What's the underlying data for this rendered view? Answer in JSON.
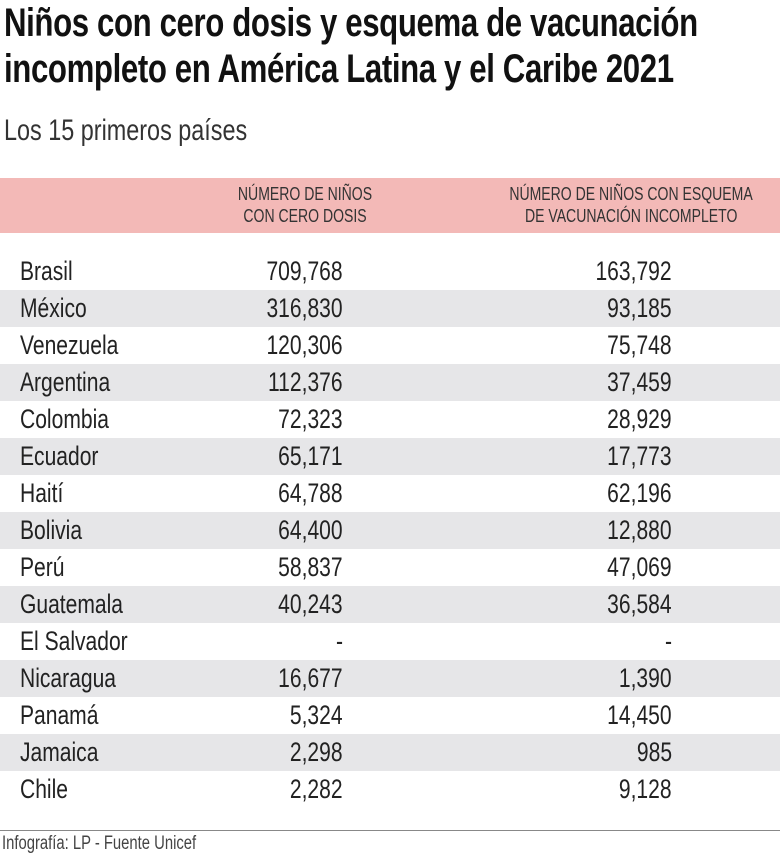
{
  "title_lines": [
    "Niños con cero dosis y esquema de vacunación",
    "incompleto en América Latina y el Caribe 2021"
  ],
  "subtitle": "Los 15 primeros países",
  "footer": "Infografía: LP - Fuente Unicef",
  "colors": {
    "header_band": "#f3b9b7",
    "alt_row": "#e6e6e8"
  },
  "chart_data": {
    "type": "table",
    "columns": [
      {
        "lines": [
          "NÚMERO DE NIÑOS",
          "CON CERO DOSIS"
        ]
      },
      {
        "lines": [
          "NÚMERO DE NIÑOS CON ESQUEMA",
          "DE VACUNACIÓN INCOMPLETO"
        ]
      }
    ],
    "rows": [
      [
        "Brasil",
        "709,768",
        "163,792"
      ],
      [
        "México",
        "316,830",
        "93,185"
      ],
      [
        "Venezuela",
        "120,306",
        "75,748"
      ],
      [
        "Argentina",
        "112,376",
        "37,459"
      ],
      [
        "Colombia",
        "72,323",
        "28,929"
      ],
      [
        "Ecuador",
        "65,171",
        "17,773"
      ],
      [
        "Haití",
        "64,788",
        "62,196"
      ],
      [
        "Bolivia",
        "64,400",
        "12,880"
      ],
      [
        "Perú",
        "58,837",
        "47,069"
      ],
      [
        "Guatemala",
        "40,243",
        "36,584"
      ],
      [
        "El Salvador",
        "-",
        "-"
      ],
      [
        "Nicaragua",
        "16,677",
        "1,390"
      ],
      [
        "Panamá",
        "5,324",
        "14,450"
      ],
      [
        "Jamaica",
        "2,298",
        "985"
      ],
      [
        "Chile",
        "2,282",
        "9,128"
      ]
    ]
  }
}
